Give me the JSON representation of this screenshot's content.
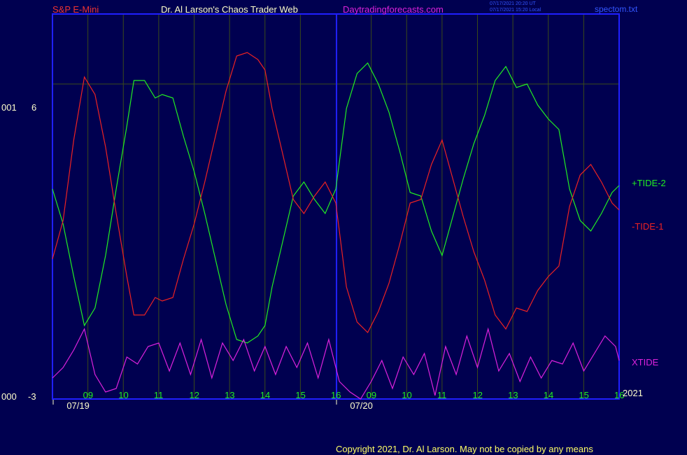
{
  "header": {
    "symbol": "S&P E-Mini",
    "author": "Dr. Al Larson's Chaos Trader Web",
    "site": "Daytradingforecasts.com",
    "stamp_utc": "07/17/2021 20:20 UT",
    "stamp_local": "07/17/2021 15:20 Local",
    "file": "spectom.txt"
  },
  "left_labels": {
    "upper_code": "001",
    "upper_value": "6",
    "lower_code": "000",
    "lower_value": "-3"
  },
  "footer": {
    "copyright": "Copyright 2021, Dr. Al Larson. May not be copied by any means",
    "year": "2021"
  },
  "colors": {
    "background": "#000050",
    "frame": "#2020ff",
    "tide2": "#22ee22",
    "tide1": "#ee2222",
    "xtide": "#dd22dd",
    "grid": "#3a4a1a"
  },
  "chart_data": {
    "type": "line",
    "ylim": [
      -3,
      8
    ],
    "y_tick": 6,
    "x_label_positions": [
      0.5,
      1,
      2,
      3,
      4,
      5,
      6,
      7,
      8,
      8.5,
      9,
      10,
      11,
      12,
      13,
      14,
      15,
      16
    ],
    "x_tick_labels": [
      "09",
      "10",
      "11",
      "12",
      "13",
      "14",
      "15",
      "16",
      "09",
      "10",
      "11",
      "12",
      "13",
      "14",
      "15",
      "16"
    ],
    "x_tick_positions": [
      1,
      2,
      3,
      4,
      5,
      6,
      7,
      8,
      9,
      10,
      11,
      12,
      13,
      14,
      15,
      16
    ],
    "date_labels": [
      {
        "x": 0.5,
        "text": "07/19"
      },
      {
        "x": 8.5,
        "text": "07/20"
      }
    ],
    "session_breaks": [
      0,
      8
    ],
    "x_range": [
      0,
      16
    ],
    "series": [
      {
        "name": "+TIDE-2",
        "color": "#22ee22",
        "x": [
          0,
          0.3,
          0.6,
          0.9,
          1.2,
          1.5,
          1.8,
          2.1,
          2.3,
          2.6,
          2.9,
          3.1,
          3.4,
          3.7,
          4.0,
          4.3,
          4.6,
          4.9,
          5.2,
          5.5,
          5.8,
          6.0,
          6.2,
          6.5,
          6.8,
          7.1,
          7.4,
          7.7,
          8.0,
          8.3,
          8.6,
          8.9,
          9.2,
          9.5,
          9.8,
          10.1,
          10.4,
          10.7,
          11.0,
          11.3,
          11.6,
          11.9,
          12.2,
          12.5,
          12.8,
          13.1,
          13.4,
          13.7,
          14.0,
          14.3,
          14.6,
          14.9,
          15.2,
          15.5,
          15.8,
          16.0
        ],
        "y": [
          3.0,
          2.0,
          0.5,
          -0.9,
          -0.4,
          1.1,
          3.0,
          4.8,
          6.1,
          6.1,
          5.6,
          5.7,
          5.6,
          4.5,
          3.5,
          2.3,
          1.0,
          -0.3,
          -1.3,
          -1.4,
          -1.2,
          -0.9,
          0.2,
          1.5,
          2.8,
          3.2,
          2.7,
          2.3,
          3.0,
          5.3,
          6.3,
          6.6,
          6.0,
          5.2,
          4.1,
          2.9,
          2.8,
          1.8,
          1.1,
          2.2,
          3.3,
          4.3,
          5.1,
          6.1,
          6.5,
          5.9,
          6.0,
          5.4,
          5.0,
          4.7,
          3.0,
          2.1,
          1.8,
          2.3,
          2.9,
          3.1
        ]
      },
      {
        "name": "-TIDE-1",
        "color": "#ee2222",
        "x": [
          0,
          0.3,
          0.6,
          0.9,
          1.2,
          1.5,
          1.8,
          2.1,
          2.3,
          2.6,
          2.9,
          3.1,
          3.4,
          3.7,
          4.0,
          4.3,
          4.6,
          4.9,
          5.2,
          5.5,
          5.8,
          6.0,
          6.2,
          6.5,
          6.8,
          7.1,
          7.4,
          7.7,
          8.0,
          8.3,
          8.6,
          8.9,
          9.2,
          9.5,
          9.8,
          10.1,
          10.4,
          10.7,
          11.0,
          11.3,
          11.6,
          11.9,
          12.2,
          12.5,
          12.8,
          13.1,
          13.4,
          13.7,
          14.0,
          14.3,
          14.6,
          14.9,
          15.2,
          15.5,
          15.8,
          16.0
        ],
        "y": [
          1.0,
          2.1,
          4.4,
          6.2,
          5.7,
          4.2,
          2.3,
          0.5,
          -0.6,
          -0.6,
          -0.1,
          -0.2,
          -0.1,
          1.0,
          2.0,
          3.2,
          4.5,
          5.8,
          6.8,
          6.9,
          6.7,
          6.4,
          5.3,
          4.0,
          2.7,
          2.3,
          2.8,
          3.2,
          2.6,
          0.2,
          -0.8,
          -1.1,
          -0.5,
          0.3,
          1.4,
          2.6,
          2.7,
          3.7,
          4.4,
          3.3,
          2.2,
          1.2,
          0.4,
          -0.6,
          -1.0,
          -0.4,
          -0.5,
          0.1,
          0.5,
          0.8,
          2.5,
          3.4,
          3.7,
          3.2,
          2.6,
          2.4
        ]
      },
      {
        "name": "XTIDE",
        "color": "#dd22dd",
        "x": [
          0,
          0.3,
          0.6,
          0.9,
          1.2,
          1.5,
          1.8,
          2.1,
          2.4,
          2.7,
          3.0,
          3.3,
          3.6,
          3.9,
          4.2,
          4.5,
          4.8,
          5.1,
          5.4,
          5.7,
          6.0,
          6.3,
          6.6,
          6.9,
          7.2,
          7.5,
          7.8,
          8.1,
          8.4,
          8.7,
          9.0,
          9.3,
          9.6,
          9.9,
          10.2,
          10.5,
          10.8,
          11.1,
          11.4,
          11.7,
          12.0,
          12.3,
          12.6,
          12.9,
          13.2,
          13.5,
          13.8,
          14.1,
          14.4,
          14.7,
          15.0,
          15.3,
          15.6,
          15.9,
          16.0
        ],
        "y": [
          -2.4,
          -2.1,
          -1.6,
          -1.0,
          -2.3,
          -2.8,
          -2.7,
          -1.8,
          -2.0,
          -1.5,
          -1.4,
          -2.2,
          -1.4,
          -2.3,
          -1.3,
          -2.4,
          -1.4,
          -1.9,
          -1.3,
          -2.2,
          -1.5,
          -2.3,
          -1.5,
          -2.1,
          -1.4,
          -2.4,
          -1.3,
          -2.5,
          -2.8,
          -3.0,
          -2.5,
          -1.9,
          -2.7,
          -1.8,
          -2.3,
          -1.7,
          -2.9,
          -1.5,
          -2.3,
          -1.2,
          -2.1,
          -1.0,
          -2.2,
          -1.7,
          -2.5,
          -1.8,
          -2.4,
          -1.9,
          -2.0,
          -1.4,
          -2.2,
          -1.7,
          -1.2,
          -1.5,
          -1.9
        ]
      }
    ]
  }
}
